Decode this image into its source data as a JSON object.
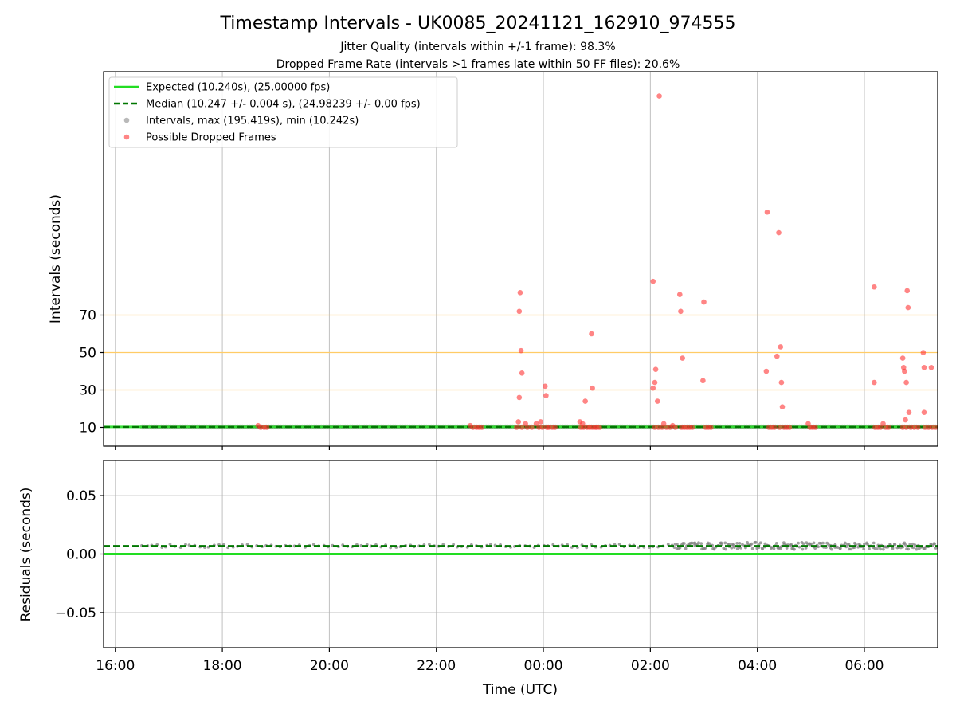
{
  "figure": {
    "title": "Timestamp Intervals - UK0085_20241121_162910_974555",
    "subtitle_1": "Jitter Quality (intervals within +/-1 frame): 98.3%",
    "subtitle_2": "Dropped Frame Rate (intervals >1 frames late within 50 FF files): 20.6%"
  },
  "chart_data": [
    {
      "type": "scatter",
      "panel": "top",
      "xlabel": "",
      "ylabel": "Intervals (seconds)",
      "x_domain_hours": [
        15.78,
        31.37
      ],
      "xlim": [
        "15:47",
        "07:22"
      ],
      "ylim": [
        0,
        200
      ],
      "yticks": [
        10,
        30,
        50,
        70
      ],
      "xticks": [
        "16:00",
        "18:00",
        "20:00",
        "22:00",
        "00:00",
        "02:00",
        "04:00",
        "06:00"
      ],
      "grid": "vertical at x ticks",
      "legend": {
        "placement": "upper-left",
        "entries": [
          "Expected (10.240s), (25.00000 fps)",
          "Median (10.247 +/- 0.004 s), (24.98239 +/- 0.00 fps)",
          "Intervals, max (195.419s), min (10.242s)",
          "Possible Dropped Frames"
        ]
      },
      "reference_lines": [
        {
          "y": 10.24,
          "color": "#22dd22",
          "style": "solid"
        },
        {
          "y": 10.247,
          "color": "#007700",
          "style": "dashed"
        },
        {
          "y": 30,
          "color": "#ffcc66",
          "style": "solid"
        },
        {
          "y": 50,
          "color": "#ffcc66",
          "style": "solid"
        },
        {
          "y": 70,
          "color": "#ffcc66",
          "style": "solid"
        }
      ],
      "normal_interval_series": {
        "from_hour": 16.5,
        "to_hour": 31.37,
        "value": 10.24,
        "color": "#808080"
      },
      "series": [
        {
          "color": "#ff3333",
          "points": [
            {
              "x": "18:40",
              "y": 11
            },
            {
              "x": "18:43",
              "y": 10
            },
            {
              "x": "18:47",
              "y": 10
            },
            {
              "x": "18:50",
              "y": 10
            },
            {
              "x": "22:38",
              "y": 11
            },
            {
              "x": "22:41",
              "y": 10
            },
            {
              "x": "22:45",
              "y": 10
            },
            {
              "x": "22:48",
              "y": 10
            },
            {
              "x": "22:51",
              "y": 10
            },
            {
              "x": "23:33",
              "y": 72
            },
            {
              "x": "23:34",
              "y": 82
            },
            {
              "x": "23:35",
              "y": 51
            },
            {
              "x": "23:36",
              "y": 39
            },
            {
              "x": "23:33",
              "y": 26
            },
            {
              "x": "23:32",
              "y": 13
            },
            {
              "x": "23:30",
              "y": 10
            },
            {
              "x": "23:36",
              "y": 10
            },
            {
              "x": "23:40",
              "y": 12
            },
            {
              "x": "23:42",
              "y": 10
            },
            {
              "x": "23:47",
              "y": 10
            },
            {
              "x": "23:52",
              "y": 12
            },
            {
              "x": "23:55",
              "y": 10
            },
            {
              "x": "23:57",
              "y": 13
            },
            {
              "x": "23:59",
              "y": 10
            },
            {
              "x": "00:02",
              "y": 32
            },
            {
              "x": "00:03",
              "y": 27
            },
            {
              "x": "00:04",
              "y": 10
            },
            {
              "x": "00:06",
              "y": 10
            },
            {
              "x": "00:10",
              "y": 10
            },
            {
              "x": "00:13",
              "y": 10
            },
            {
              "x": "00:41",
              "y": 13
            },
            {
              "x": "00:42",
              "y": 10
            },
            {
              "x": "00:44",
              "y": 12
            },
            {
              "x": "00:45",
              "y": 10
            },
            {
              "x": "00:47",
              "y": 24
            },
            {
              "x": "00:49",
              "y": 10
            },
            {
              "x": "00:52",
              "y": 10
            },
            {
              "x": "00:55",
              "y": 10
            },
            {
              "x": "00:54",
              "y": 60
            },
            {
              "x": "00:55",
              "y": 31
            },
            {
              "x": "00:58",
              "y": 10
            },
            {
              "x": "01:00",
              "y": 10
            },
            {
              "x": "01:03",
              "y": 10
            },
            {
              "x": "02:03",
              "y": 88
            },
            {
              "x": "02:03",
              "y": 31
            },
            {
              "x": "02:05",
              "y": 34
            },
            {
              "x": "02:06",
              "y": 41
            },
            {
              "x": "02:08",
              "y": 24
            },
            {
              "x": "02:10",
              "y": 187
            },
            {
              "x": "02:05",
              "y": 10
            },
            {
              "x": "02:09",
              "y": 10
            },
            {
              "x": "02:13",
              "y": 10
            },
            {
              "x": "02:15",
              "y": 12
            },
            {
              "x": "02:18",
              "y": 10
            },
            {
              "x": "02:22",
              "y": 10
            },
            {
              "x": "02:25",
              "y": 11
            },
            {
              "x": "02:28",
              "y": 10
            },
            {
              "x": "02:33",
              "y": 81
            },
            {
              "x": "02:34",
              "y": 72
            },
            {
              "x": "02:36",
              "y": 47
            },
            {
              "x": "02:35",
              "y": 10
            },
            {
              "x": "02:38",
              "y": 10
            },
            {
              "x": "02:41",
              "y": 10
            },
            {
              "x": "02:44",
              "y": 10
            },
            {
              "x": "02:47",
              "y": 10
            },
            {
              "x": "02:59",
              "y": 35
            },
            {
              "x": "03:00",
              "y": 77
            },
            {
              "x": "03:02",
              "y": 10
            },
            {
              "x": "03:05",
              "y": 10
            },
            {
              "x": "03:08",
              "y": 10
            },
            {
              "x": "04:11",
              "y": 125
            },
            {
              "x": "04:10",
              "y": 40
            },
            {
              "x": "04:13",
              "y": 10
            },
            {
              "x": "04:16",
              "y": 10
            },
            {
              "x": "04:19",
              "y": 10
            },
            {
              "x": "04:22",
              "y": 48
            },
            {
              "x": "04:24",
              "y": 114
            },
            {
              "x": "04:26",
              "y": 53
            },
            {
              "x": "04:27",
              "y": 34
            },
            {
              "x": "04:28",
              "y": 21
            },
            {
              "x": "04:25",
              "y": 10
            },
            {
              "x": "04:30",
              "y": 10
            },
            {
              "x": "04:33",
              "y": 10
            },
            {
              "x": "04:36",
              "y": 10
            },
            {
              "x": "04:57",
              "y": 12
            },
            {
              "x": "04:59",
              "y": 10
            },
            {
              "x": "05:02",
              "y": 10
            },
            {
              "x": "05:05",
              "y": 10
            },
            {
              "x": "06:11",
              "y": 85
            },
            {
              "x": "06:11",
              "y": 34
            },
            {
              "x": "06:12",
              "y": 10
            },
            {
              "x": "06:15",
              "y": 10
            },
            {
              "x": "06:18",
              "y": 10
            },
            {
              "x": "06:21",
              "y": 12
            },
            {
              "x": "06:24",
              "y": 10
            },
            {
              "x": "06:27",
              "y": 10
            },
            {
              "x": "06:43",
              "y": 47
            },
            {
              "x": "06:44",
              "y": 42
            },
            {
              "x": "06:45",
              "y": 40
            },
            {
              "x": "06:46",
              "y": 14
            },
            {
              "x": "06:47",
              "y": 34
            },
            {
              "x": "06:48",
              "y": 83
            },
            {
              "x": "06:49",
              "y": 74
            },
            {
              "x": "06:50",
              "y": 18
            },
            {
              "x": "06:43",
              "y": 10
            },
            {
              "x": "06:47",
              "y": 10
            },
            {
              "x": "06:52",
              "y": 10
            },
            {
              "x": "06:56",
              "y": 10
            },
            {
              "x": "07:00",
              "y": 10
            },
            {
              "x": "07:06",
              "y": 50
            },
            {
              "x": "07:07",
              "y": 42
            },
            {
              "x": "07:07",
              "y": 18
            },
            {
              "x": "07:08",
              "y": 10
            },
            {
              "x": "07:15",
              "y": 42
            },
            {
              "x": "07:12",
              "y": 10
            },
            {
              "x": "07:16",
              "y": 10
            },
            {
              "x": "07:20",
              "y": 10
            }
          ]
        }
      ]
    },
    {
      "type": "scatter",
      "panel": "bottom",
      "xlabel": "Time (UTC)",
      "ylabel": "Residuals (seconds)",
      "x_domain_hours": [
        15.78,
        31.37
      ],
      "ylim": [
        -0.08,
        0.08
      ],
      "yticks": [
        "−0.05",
        "0.00",
        "0.05"
      ],
      "ytick_values": [
        -0.05,
        0.0,
        0.05
      ],
      "xticks": [
        "16:00",
        "18:00",
        "20:00",
        "22:00",
        "00:00",
        "02:00",
        "04:00",
        "06:00"
      ],
      "grid": "both",
      "reference_lines": [
        {
          "y": 0.0,
          "color": "#22dd22",
          "style": "solid"
        },
        {
          "y": 0.007,
          "color": "#007700",
          "style": "dashed"
        }
      ],
      "residual_series": {
        "from_hour": 16.5,
        "to_hour": 31.37,
        "center": 0.007,
        "spread_early": 0.0015,
        "spread_late": 0.003,
        "late_from_hour": 26.4,
        "color": "#808080"
      }
    }
  ],
  "colors": {
    "expected": "#22dd22",
    "median": "#007700",
    "interval": "#808080",
    "dropped": "#ff3333",
    "threshold": "#ffcc66",
    "grid": "#b0b0b0"
  }
}
